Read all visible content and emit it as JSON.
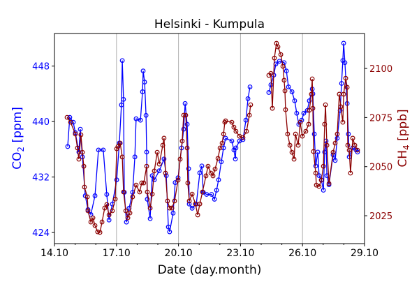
{
  "chart_data": {
    "type": "line",
    "title": "Helsinki - Kumpula",
    "xlabel": "Date (day.month)",
    "x_unit": "days since 14.10",
    "xlim": [
      0,
      15
    ],
    "xticks": [
      0,
      3,
      6,
      9,
      12,
      15
    ],
    "xtick_labels": [
      "14.10",
      "17.10",
      "20.10",
      "23.10",
      "26.10",
      "29.10"
    ],
    "grid": "vertical lines at major x ticks",
    "y_left": {
      "label_main": "CO",
      "label_sub": "2",
      "label_unit": " [ppm]",
      "ylim": [
        422.4,
        452.7
      ],
      "ticks": [
        424,
        432,
        440,
        448
      ],
      "tick_labels": [
        "424",
        "432",
        "440",
        "448"
      ],
      "color": "#0000ff"
    },
    "y_right": {
      "label_main": "CH",
      "label_sub": "4",
      "label_unit": " [ppb]",
      "ylim": [
        2010.8,
        2117.8
      ],
      "ticks": [
        2025,
        2050,
        2075,
        2100
      ],
      "tick_labels": [
        "2025",
        "2050",
        "2075",
        "2100"
      ],
      "color": "#8b0000"
    },
    "series": [
      {
        "name": "CO2",
        "axis": "left",
        "color": "#0000ff",
        "points": [
          [
            0.64,
            436.4
          ],
          [
            0.74,
            440.6
          ],
          [
            0.91,
            439.9
          ],
          [
            1.01,
            438.4
          ],
          [
            1.18,
            435.6
          ],
          [
            1.25,
            438.9
          ],
          [
            1.35,
            434.9
          ],
          [
            1.49,
            429.3
          ],
          [
            1.62,
            427.3
          ],
          [
            1.76,
            426.6
          ],
          [
            1.96,
            429.3
          ],
          [
            2.13,
            435.9
          ],
          [
            2.36,
            435.9
          ],
          [
            2.53,
            429.5
          ],
          [
            2.64,
            425.8
          ],
          [
            2.8,
            428.1
          ],
          [
            3.01,
            431.6
          ],
          [
            3.14,
            436.9
          ],
          [
            3.24,
            442.4
          ],
          [
            3.28,
            448.8
          ],
          [
            3.34,
            443.2
          ],
          [
            3.38,
            429.8
          ],
          [
            3.48,
            425.5
          ],
          [
            3.61,
            427.5
          ],
          [
            3.78,
            429.8
          ],
          [
            3.89,
            434.9
          ],
          [
            3.95,
            440.4
          ],
          [
            4.16,
            440.2
          ],
          [
            4.26,
            444.3
          ],
          [
            4.29,
            447.3
          ],
          [
            4.36,
            445.7
          ],
          [
            4.43,
            440.9
          ],
          [
            4.46,
            435.6
          ],
          [
            4.49,
            428.8
          ],
          [
            4.63,
            426.0
          ],
          [
            4.73,
            432.2
          ],
          [
            4.83,
            431.6
          ],
          [
            5.07,
            432.9
          ],
          [
            5.3,
            434.6
          ],
          [
            5.41,
            432.2
          ],
          [
            5.51,
            424.8
          ],
          [
            5.57,
            424.1
          ],
          [
            5.74,
            426.8
          ],
          [
            5.84,
            431.2
          ],
          [
            5.98,
            431.9
          ],
          [
            6.15,
            436.2
          ],
          [
            6.25,
            438.9
          ],
          [
            6.32,
            442.6
          ],
          [
            6.42,
            439.6
          ],
          [
            6.49,
            433.2
          ],
          [
            6.52,
            428.1
          ],
          [
            6.66,
            427.5
          ],
          [
            6.86,
            428.1
          ],
          [
            7.03,
            432.6
          ],
          [
            7.13,
            433.6
          ],
          [
            7.2,
            429.8
          ],
          [
            7.36,
            429.5
          ],
          [
            7.6,
            429.5
          ],
          [
            7.74,
            428.8
          ],
          [
            7.84,
            430.1
          ],
          [
            7.94,
            431.6
          ],
          [
            8.07,
            434.2
          ],
          [
            8.18,
            436.2
          ],
          [
            8.28,
            437.6
          ],
          [
            8.58,
            437.2
          ],
          [
            8.68,
            435.9
          ],
          [
            8.75,
            434.6
          ],
          [
            8.78,
            436.2
          ],
          [
            8.95,
            437.2
          ],
          [
            9.12,
            437.4
          ],
          [
            9.26,
            440.2
          ],
          [
            9.36,
            443.3
          ],
          [
            9.46,
            445.0
          ],
          null,
          [
            10.37,
            444.2
          ],
          [
            10.47,
            445.3
          ],
          [
            10.61,
            446.7
          ],
          [
            10.71,
            448.3
          ],
          [
            10.88,
            448.7
          ],
          [
            11.11,
            448.5
          ],
          [
            11.22,
            447.3
          ],
          [
            11.32,
            445.0
          ],
          [
            11.49,
            444.3
          ],
          [
            11.62,
            443.0
          ],
          [
            11.72,
            441.2
          ],
          [
            11.82,
            439.6
          ],
          [
            11.96,
            440.2
          ],
          [
            12.06,
            441.2
          ],
          [
            12.23,
            441.6
          ],
          [
            12.33,
            443.0
          ],
          [
            12.47,
            444.7
          ],
          [
            12.5,
            444.0
          ],
          [
            12.57,
            438.2
          ],
          [
            12.64,
            433.6
          ],
          [
            12.74,
            435.6
          ],
          [
            12.8,
            432.2
          ],
          [
            12.91,
            431.6
          ],
          [
            13.01,
            430.1
          ],
          [
            13.07,
            435.6
          ],
          [
            13.14,
            437.2
          ],
          [
            13.18,
            432.2
          ],
          [
            13.28,
            430.9
          ],
          [
            13.48,
            435.2
          ],
          [
            13.58,
            434.4
          ],
          [
            13.68,
            437.6
          ],
          [
            13.82,
            441.6
          ],
          [
            13.89,
            445.5
          ],
          [
            13.95,
            448.8
          ],
          [
            13.99,
            451.3
          ],
          [
            14.05,
            448.5
          ],
          [
            14.16,
            442.6
          ],
          [
            14.22,
            438.2
          ],
          [
            14.26,
            434.9
          ],
          [
            14.43,
            436.2
          ],
          [
            14.59,
            435.9
          ],
          [
            14.66,
            435.6
          ]
        ]
      },
      {
        "name": "CH4",
        "axis": "right",
        "color": "#8b0000",
        "points": [
          [
            0.61,
            2075.1
          ],
          [
            0.78,
            2072.6
          ],
          [
            1.01,
            2066.6
          ],
          [
            1.11,
            2059.5
          ],
          [
            1.18,
            2053.8
          ],
          [
            1.28,
            2066.2
          ],
          [
            1.35,
            2057.3
          ],
          [
            1.42,
            2050.2
          ],
          [
            1.45,
            2039.6
          ],
          [
            1.59,
            2034.6
          ],
          [
            1.62,
            2027.5
          ],
          [
            1.76,
            2021.8
          ],
          [
            1.86,
            2023.9
          ],
          [
            1.96,
            2020.0
          ],
          [
            2.09,
            2016.8
          ],
          [
            2.2,
            2016.5
          ],
          [
            2.3,
            2021.8
          ],
          [
            2.43,
            2028.9
          ],
          [
            2.53,
            2030.7
          ],
          [
            2.64,
            2025.4
          ],
          [
            2.8,
            2027.5
          ],
          [
            2.94,
            2033.5
          ],
          [
            3.01,
            2059.1
          ],
          [
            3.07,
            2060.2
          ],
          [
            3.18,
            2062.0
          ],
          [
            3.28,
            2054.9
          ],
          [
            3.34,
            2037.1
          ],
          [
            3.45,
            2027.5
          ],
          [
            3.55,
            2023.9
          ],
          [
            3.65,
            2026.4
          ],
          [
            3.78,
            2034.6
          ],
          [
            3.95,
            2040.6
          ],
          [
            4.12,
            2037.1
          ],
          [
            4.22,
            2041.7
          ],
          [
            4.32,
            2041.7
          ],
          [
            4.46,
            2050.2
          ],
          [
            4.49,
            2037.1
          ],
          [
            4.63,
            2028.9
          ],
          [
            4.73,
            2036.0
          ],
          [
            4.83,
            2047.8
          ],
          [
            4.97,
            2057.3
          ],
          [
            5.07,
            2051.3
          ],
          [
            5.24,
            2060.9
          ],
          [
            5.3,
            2064.5
          ],
          [
            5.37,
            2046.7
          ],
          [
            5.47,
            2032.5
          ],
          [
            5.57,
            2028.9
          ],
          [
            5.68,
            2028.9
          ],
          [
            5.81,
            2032.5
          ],
          [
            5.98,
            2043.1
          ],
          [
            6.08,
            2053.8
          ],
          [
            6.18,
            2063.0
          ],
          [
            6.25,
            2076.2
          ],
          [
            6.35,
            2076.2
          ],
          [
            6.42,
            2059.5
          ],
          [
            6.45,
            2041.7
          ],
          [
            6.52,
            2032.5
          ],
          [
            6.66,
            2036.0
          ],
          [
            6.82,
            2031.0
          ],
          [
            6.93,
            2025.4
          ],
          [
            7.03,
            2031.0
          ],
          [
            7.16,
            2037.1
          ],
          [
            7.33,
            2045.3
          ],
          [
            7.43,
            2050.2
          ],
          [
            7.57,
            2046.7
          ],
          [
            7.67,
            2045.3
          ],
          [
            7.77,
            2048.8
          ],
          [
            7.91,
            2054.2
          ],
          [
            8.01,
            2059.5
          ],
          [
            8.11,
            2062.0
          ],
          [
            8.18,
            2066.6
          ],
          [
            8.24,
            2072.6
          ],
          [
            8.28,
            2073.3
          ],
          [
            8.58,
            2072.6
          ],
          [
            8.68,
            2070.1
          ],
          [
            8.78,
            2068.0
          ],
          [
            8.95,
            2065.5
          ],
          [
            9.12,
            2064.8
          ],
          [
            9.29,
            2068.0
          ],
          [
            9.43,
            2076.2
          ],
          [
            9.49,
            2081.5
          ],
          null,
          [
            10.37,
            2096.5
          ],
          [
            10.47,
            2097.5
          ],
          [
            10.54,
            2079.7
          ],
          [
            10.64,
            2105.3
          ],
          [
            10.74,
            2112.8
          ],
          [
            10.81,
            2111.0
          ],
          [
            10.95,
            2107.1
          ],
          [
            11.05,
            2101.1
          ],
          [
            11.11,
            2094.0
          ],
          [
            11.15,
            2088.6
          ],
          [
            11.18,
            2079.0
          ],
          [
            11.28,
            2066.6
          ],
          [
            11.39,
            2060.9
          ],
          [
            11.49,
            2057.3
          ],
          [
            11.59,
            2053.8
          ],
          [
            11.66,
            2066.6
          ],
          [
            11.79,
            2060.9
          ],
          [
            11.89,
            2072.6
          ],
          [
            11.99,
            2065.5
          ],
          [
            12.16,
            2068.0
          ],
          [
            12.3,
            2071.6
          ],
          [
            12.33,
            2078.7
          ],
          [
            12.43,
            2086.9
          ],
          [
            12.47,
            2094.7
          ],
          [
            12.5,
            2079.7
          ],
          [
            12.53,
            2057.7
          ],
          [
            12.64,
            2046.7
          ],
          [
            12.67,
            2040.6
          ],
          [
            12.8,
            2039.9
          ],
          [
            12.91,
            2043.1
          ],
          [
            13.01,
            2050.2
          ],
          [
            13.07,
            2071.6
          ],
          [
            13.11,
            2081.5
          ],
          [
            13.18,
            2060.9
          ],
          [
            13.28,
            2041.4
          ],
          [
            13.48,
            2057.3
          ],
          [
            13.58,
            2062.0
          ],
          [
            13.68,
            2066.6
          ],
          [
            13.78,
            2086.9
          ],
          [
            13.85,
            2080.5
          ],
          [
            13.95,
            2072.6
          ],
          [
            13.99,
            2086.9
          ],
          [
            14.09,
            2095.0
          ],
          [
            14.16,
            2090.4
          ],
          [
            14.19,
            2060.9
          ],
          [
            14.26,
            2058.4
          ],
          [
            14.32,
            2046.7
          ],
          [
            14.43,
            2064.5
          ],
          [
            14.53,
            2060.9
          ],
          [
            14.66,
            2058.4
          ]
        ]
      }
    ]
  }
}
